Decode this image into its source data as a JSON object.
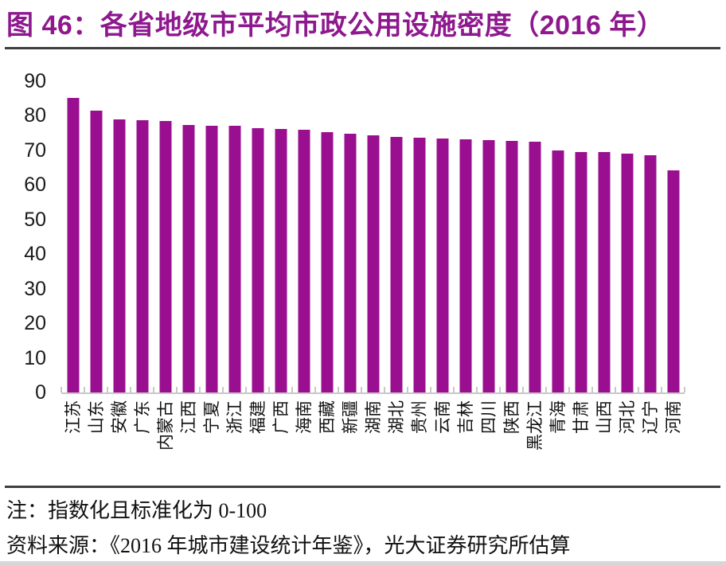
{
  "figure": {
    "title": "图 46：各省地级市平均市政公用设施密度（2016 年）",
    "note": "注：指数化且标准化为 0-100",
    "source": "资料来源：《2016 年城市建设统计年鉴》，光大证券研究所估算"
  },
  "colors": {
    "title": "#8E188E",
    "bar": "#9A0F8F",
    "rule": "#3F3F3F",
    "axis_line": "#C8C8C8",
    "tick_label": "#1A1A1A"
  },
  "chart_data": {
    "type": "bar",
    "title": "各省地级市平均市政公用设施密度（2016 年）",
    "xlabel": "",
    "ylabel": "",
    "ylim": [
      0,
      90
    ],
    "yticks": [
      0,
      10,
      20,
      30,
      40,
      50,
      60,
      70,
      80,
      90
    ],
    "grid": false,
    "legend": "none",
    "bar_color": "#9A0F8F",
    "categories": [
      "江苏",
      "山东",
      "安徽",
      "广东",
      "内蒙古",
      "江西",
      "宁夏",
      "浙江",
      "福建",
      "广西",
      "海南",
      "西藏",
      "新疆",
      "湖南",
      "湖北",
      "贵州",
      "云南",
      "吉林",
      "四川",
      "陕西",
      "黑龙江",
      "青海",
      "甘肃",
      "山西",
      "河北",
      "辽宁",
      "河南"
    ],
    "values": [
      85.2,
      81.5,
      79.0,
      78.8,
      78.5,
      77.4,
      77.2,
      77.0,
      76.5,
      76.3,
      75.9,
      75.2,
      74.8,
      74.4,
      74.0,
      73.7,
      73.4,
      73.1,
      72.9,
      72.8,
      72.6,
      69.9,
      69.6,
      69.4,
      69.0,
      68.5,
      64.2
    ]
  }
}
